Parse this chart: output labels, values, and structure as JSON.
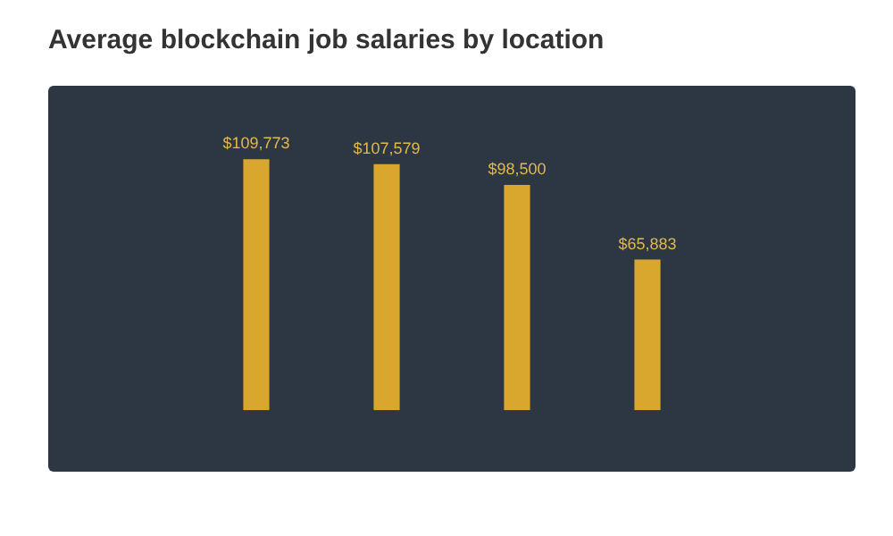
{
  "chart_data": {
    "type": "bar",
    "title": "Average blockchain job salaries by location",
    "categories": [
      null,
      null,
      null,
      null
    ],
    "values": [
      109773,
      107579,
      98500,
      65883
    ],
    "value_labels": [
      "$109,773",
      "$107,579",
      "$98,500",
      "$65,883"
    ],
    "color": "#d9a62e",
    "grid": false,
    "legend": false
  }
}
